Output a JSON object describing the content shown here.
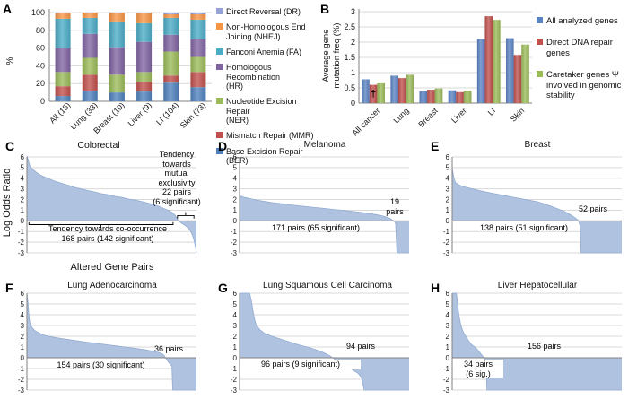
{
  "colors": {
    "dr": "#97A3D8",
    "nhej": "#F79646",
    "fa": "#4BACC6",
    "hr": "#8064A2",
    "ner": "#9BBB59",
    "mmr": "#C0504D",
    "ber": "#4F81BD",
    "blue": "#5B83C4",
    "red": "#C0504D",
    "green": "#9BBB59",
    "lor_fill": "#AFC3E1",
    "lor_edge": "#93ABD0",
    "grid": "#D9D9D9",
    "axis": "#808080",
    "tick_text": "#1A1A1A"
  },
  "chart_data": [
    {
      "panel_label": "A",
      "type": "bar",
      "subtype": "stacked-percent",
      "title": "",
      "ylabel": "%",
      "ylim": [
        0,
        100
      ],
      "yticks": [
        0,
        20,
        40,
        60,
        80,
        100
      ],
      "grid": "horizontal",
      "categories": [
        "All (15)",
        "Lung (33)",
        "Breast (10)",
        "Liver (9)",
        "LI (104)",
        "Skin (73)"
      ],
      "series": [
        {
          "name": "Base Excision Repair (BER)",
          "color_key": "ber",
          "values": [
            6,
            12,
            10,
            11,
            21,
            16
          ]
        },
        {
          "name": "Mismatch Repair (MMR)",
          "color_key": "mmr",
          "values": [
            11,
            18,
            0,
            11,
            8,
            17
          ]
        },
        {
          "name": "Nucleotide Excision Repair (NER)",
          "color_key": "ner",
          "values": [
            16,
            19,
            20,
            11,
            27,
            17
          ]
        },
        {
          "name": "Homologous Recombination (HR)",
          "color_key": "hr",
          "values": [
            27,
            27,
            31,
            34,
            19,
            20
          ]
        },
        {
          "name": "Fanconi Anemia (FA)",
          "color_key": "fa",
          "values": [
            33,
            18,
            29,
            21,
            19,
            22
          ]
        },
        {
          "name": "Non-Homologous End Joining (NHEJ)",
          "color_key": "nhej",
          "values": [
            6,
            6,
            10,
            12,
            4,
            6
          ]
        },
        {
          "name": "Direct Reversal (DR)",
          "color_key": "dr",
          "values": [
            1,
            0,
            0,
            0,
            2,
            2
          ]
        }
      ],
      "legend_position": "right",
      "legend": [
        {
          "color_key": "dr",
          "label": "Direct Reversal (DR)"
        },
        {
          "color_key": "nhej",
          "label": "Non-Homologous End\nJoining (NHEJ)"
        },
        {
          "color_key": "fa",
          "label": "Fanconi Anemia (FA)"
        },
        {
          "color_key": "hr",
          "label": "Homologous Recombination\n(HR)"
        },
        {
          "color_key": "ner",
          "label": "Nucleotide Excision Repair\n(NER)"
        },
        {
          "color_key": "mmr",
          "label": "Mismatch Repair (MMR)"
        },
        {
          "color_key": "ber",
          "label": "Base Excision Repair (BER)"
        }
      ]
    },
    {
      "panel_label": "B",
      "type": "bar",
      "subtype": "grouped",
      "title": "",
      "ylabel": "Average gene mutation freq (%)",
      "ylabel_lines": "Average gene\nmutation freq (%)",
      "ylim": [
        0,
        3
      ],
      "yticks": [
        0,
        0.5,
        1,
        1.5,
        2,
        2.5,
        3
      ],
      "grid": "horizontal",
      "categories": [
        "All cancer",
        "Lung",
        "Breast",
        "Liver",
        "LI",
        "Skin"
      ],
      "series": [
        {
          "name": "All analyzed genes",
          "color_key": "blue",
          "values": [
            0.78,
            0.9,
            0.39,
            0.42,
            2.1,
            2.13
          ]
        },
        {
          "name": "Direct DNA repair genes",
          "color_key": "red",
          "values": [
            0.6,
            0.82,
            0.44,
            0.36,
            2.85,
            1.58
          ]
        },
        {
          "name": "Caretaker genes Ψ involved in genomic stability",
          "color_key": "green",
          "values": [
            0.65,
            0.93,
            0.48,
            0.41,
            2.73,
            1.92
          ]
        }
      ],
      "annotation": {
        "text": "†",
        "category_index": 0,
        "series_index": 1,
        "y": 0.2
      },
      "legend_position": "right",
      "legend": [
        {
          "color_key": "blue",
          "label": "All analyzed genes"
        },
        {
          "color_key": "red",
          "label": "Direct DNA repair\ngenes"
        },
        {
          "color_key": "green",
          "label": "Caretaker genes Ψ\ninvolved in genomic\nstability"
        }
      ]
    },
    {
      "panel_label": "C",
      "type": "area",
      "title": "Colorectal",
      "ylabel": "Log Odds Ratio",
      "xlabel": "Altered Gene Pairs",
      "ylim": [
        -3,
        6
      ],
      "yticks": [
        -3,
        -2,
        -1,
        0,
        1,
        2,
        3,
        4,
        5,
        6
      ],
      "notes": {
        "side": "Tendency\ntowards\nmutual\nexclusivity\n22 pairs\n(6 significant)",
        "main": "Tendency towards co-occurrence\n168 pairs (142 significant)"
      },
      "brackets": [
        {
          "x1": 0.012,
          "x2": 0.862,
          "y": -0.35,
          "tick_to": -0.12,
          "mid": 0.437,
          "mid_to": -0.68
        },
        {
          "x1": 0.888,
          "x2": 0.985,
          "y": 0.5,
          "tick_to": 0.22,
          "mid": 0.936,
          "mid_to": 0.82
        }
      ],
      "points": [
        [
          0,
          6.1
        ],
        [
          0.008,
          5.7
        ],
        [
          0.015,
          5.3
        ],
        [
          0.025,
          5.0
        ],
        [
          0.04,
          4.75
        ],
        [
          0.06,
          4.5
        ],
        [
          0.08,
          4.3
        ],
        [
          0.1,
          4.15
        ],
        [
          0.13,
          3.95
        ],
        [
          0.16,
          3.75
        ],
        [
          0.2,
          3.55
        ],
        [
          0.24,
          3.35
        ],
        [
          0.28,
          3.15
        ],
        [
          0.32,
          3.0
        ],
        [
          0.36,
          2.85
        ],
        [
          0.4,
          2.7
        ],
        [
          0.44,
          2.55
        ],
        [
          0.48,
          2.45
        ],
        [
          0.52,
          2.3
        ],
        [
          0.56,
          2.2
        ],
        [
          0.6,
          2.05
        ],
        [
          0.64,
          1.95
        ],
        [
          0.68,
          1.8
        ],
        [
          0.72,
          1.65
        ],
        [
          0.75,
          1.5
        ],
        [
          0.78,
          1.35
        ],
        [
          0.81,
          1.15
        ],
        [
          0.84,
          0.95
        ],
        [
          0.86,
          0.75
        ],
        [
          0.875,
          0.5
        ],
        [
          0.885,
          0.25
        ],
        [
          0.893,
          0
        ],
        [
          0.91,
          -0.2
        ],
        [
          0.93,
          -0.4
        ],
        [
          0.95,
          -0.65
        ],
        [
          0.965,
          -0.95
        ],
        [
          0.975,
          -1.3
        ],
        [
          0.985,
          -1.8
        ],
        [
          0.993,
          -2.4
        ],
        [
          1,
          -3
        ]
      ]
    },
    {
      "panel_label": "D",
      "type": "area",
      "title": "Melanoma",
      "ylim": [
        -3,
        6
      ],
      "yticks": [
        -3,
        -2,
        -1,
        0,
        1,
        2,
        3,
        4,
        5,
        6
      ],
      "notes": {
        "main": "171 pairs (65 significant)",
        "side": "19\npairs"
      },
      "points": [
        [
          0,
          2.35
        ],
        [
          0.03,
          2.2
        ],
        [
          0.06,
          2.1
        ],
        [
          0.1,
          1.95
        ],
        [
          0.15,
          1.82
        ],
        [
          0.2,
          1.7
        ],
        [
          0.25,
          1.6
        ],
        [
          0.3,
          1.5
        ],
        [
          0.35,
          1.42
        ],
        [
          0.4,
          1.33
        ],
        [
          0.45,
          1.25
        ],
        [
          0.5,
          1.17
        ],
        [
          0.55,
          1.08
        ],
        [
          0.6,
          1.0
        ],
        [
          0.65,
          0.92
        ],
        [
          0.7,
          0.83
        ],
        [
          0.75,
          0.73
        ],
        [
          0.8,
          0.6
        ],
        [
          0.84,
          0.48
        ],
        [
          0.87,
          0.35
        ],
        [
          0.89,
          0.2
        ],
        [
          0.9,
          0.08
        ],
        [
          0.91,
          0
        ],
        [
          0.92,
          -0.25
        ],
        [
          0.928,
          -3
        ],
        [
          1,
          -3
        ]
      ]
    },
    {
      "panel_label": "E",
      "type": "area",
      "title": "Breast",
      "ylim": [
        -3,
        6
      ],
      "yticks": [
        -3,
        -2,
        -1,
        0,
        1,
        2,
        3,
        4,
        5,
        6
      ],
      "notes": {
        "main": "138 pairs (51 significant)",
        "side": "52 pairs"
      },
      "points": [
        [
          0,
          5.0
        ],
        [
          0.006,
          4.4
        ],
        [
          0.012,
          3.9
        ],
        [
          0.02,
          3.6
        ],
        [
          0.03,
          3.45
        ],
        [
          0.05,
          3.3
        ],
        [
          0.08,
          3.15
        ],
        [
          0.12,
          3.0
        ],
        [
          0.16,
          2.85
        ],
        [
          0.2,
          2.7
        ],
        [
          0.25,
          2.55
        ],
        [
          0.3,
          2.4
        ],
        [
          0.35,
          2.25
        ],
        [
          0.4,
          2.1
        ],
        [
          0.45,
          1.95
        ],
        [
          0.5,
          1.8
        ],
        [
          0.54,
          1.6
        ],
        [
          0.58,
          1.4
        ],
        [
          0.62,
          1.15
        ],
        [
          0.66,
          0.9
        ],
        [
          0.69,
          0.65
        ],
        [
          0.72,
          0.35
        ],
        [
          0.74,
          0.1
        ],
        [
          0.745,
          0
        ],
        [
          0.755,
          -0.5
        ],
        [
          0.76,
          -3
        ],
        [
          1,
          -3
        ]
      ]
    },
    {
      "panel_label": "F",
      "type": "area",
      "title": "Lung Adenocarcinoma",
      "ylim": [
        -3,
        6
      ],
      "yticks": [
        -3,
        -2,
        -1,
        0,
        1,
        2,
        3,
        4,
        5,
        6
      ],
      "notes": {
        "main": "154 pairs (30 significant)",
        "side": "36 pairs"
      },
      "points": [
        [
          0,
          6
        ],
        [
          0.006,
          5.2
        ],
        [
          0.01,
          4.3
        ],
        [
          0.015,
          3.5
        ],
        [
          0.02,
          3.1
        ],
        [
          0.03,
          2.8
        ],
        [
          0.045,
          2.55
        ],
        [
          0.06,
          2.4
        ],
        [
          0.08,
          2.25
        ],
        [
          0.1,
          2.1
        ],
        [
          0.13,
          2.0
        ],
        [
          0.16,
          1.9
        ],
        [
          0.2,
          1.8
        ],
        [
          0.25,
          1.68
        ],
        [
          0.3,
          1.57
        ],
        [
          0.35,
          1.46
        ],
        [
          0.4,
          1.36
        ],
        [
          0.45,
          1.26
        ],
        [
          0.5,
          1.16
        ],
        [
          0.55,
          1.06
        ],
        [
          0.6,
          0.96
        ],
        [
          0.65,
          0.85
        ],
        [
          0.7,
          0.73
        ],
        [
          0.74,
          0.62
        ],
        [
          0.78,
          0.48
        ],
        [
          0.8,
          0.35
        ],
        [
          0.81,
          0.2
        ],
        [
          0.818,
          0
        ],
        [
          0.83,
          -0.3
        ],
        [
          0.845,
          -0.6
        ],
        [
          0.855,
          -0.75
        ],
        [
          0.86,
          -3
        ],
        [
          1,
          -3
        ]
      ]
    },
    {
      "panel_label": "G",
      "type": "area",
      "title": "Lung Squamous Cell Carcinoma",
      "ylim": [
        -3,
        6
      ],
      "yticks": [
        -3,
        -2,
        -1,
        0,
        1,
        2,
        3,
        4,
        5,
        6
      ],
      "notes": {
        "main": "96 pairs (9 significant)",
        "side": "94 pairs"
      },
      "points": [
        [
          0,
          6
        ],
        [
          0.06,
          6
        ],
        [
          0.07,
          5.3
        ],
        [
          0.08,
          4.3
        ],
        [
          0.09,
          3.5
        ],
        [
          0.1,
          3.0
        ],
        [
          0.12,
          2.6
        ],
        [
          0.15,
          2.25
        ],
        [
          0.2,
          1.95
        ],
        [
          0.25,
          1.7
        ],
        [
          0.3,
          1.45
        ],
        [
          0.35,
          1.2
        ],
        [
          0.4,
          1.0
        ],
        [
          0.45,
          0.75
        ],
        [
          0.5,
          0.45
        ],
        [
          0.53,
          0.2
        ],
        [
          0.55,
          0
        ],
        [
          0.58,
          -0.35
        ],
        [
          0.62,
          -0.75
        ],
        [
          0.66,
          -1.05
        ],
        [
          0.7,
          -1.45
        ],
        [
          0.72,
          -1.9
        ],
        [
          0.735,
          -3
        ],
        [
          1,
          -3
        ]
      ]
    },
    {
      "panel_label": "H",
      "type": "area",
      "title": "Liver Hepatocellular",
      "ylim": [
        -3,
        6
      ],
      "yticks": [
        -3,
        -2,
        -1,
        0,
        1,
        2,
        3,
        4,
        5,
        6
      ],
      "notes": {
        "main": "34 pairs\n(6 sig.)",
        "side": "156 pairs"
      },
      "points": [
        [
          0,
          6
        ],
        [
          0.025,
          6
        ],
        [
          0.03,
          5.4
        ],
        [
          0.035,
          4.6
        ],
        [
          0.04,
          3.9
        ],
        [
          0.05,
          3.1
        ],
        [
          0.06,
          2.6
        ],
        [
          0.07,
          2.25
        ],
        [
          0.08,
          2.0
        ],
        [
          0.09,
          1.75
        ],
        [
          0.1,
          1.5
        ],
        [
          0.11,
          1.3
        ],
        [
          0.12,
          1.15
        ],
        [
          0.13,
          1.05
        ],
        [
          0.14,
          0.9
        ],
        [
          0.15,
          0.75
        ],
        [
          0.16,
          0.55
        ],
        [
          0.17,
          0.35
        ],
        [
          0.18,
          0.15
        ],
        [
          0.19,
          0
        ],
        [
          0.2,
          -0.6
        ],
        [
          0.205,
          -3
        ],
        [
          1,
          -3
        ]
      ]
    }
  ]
}
